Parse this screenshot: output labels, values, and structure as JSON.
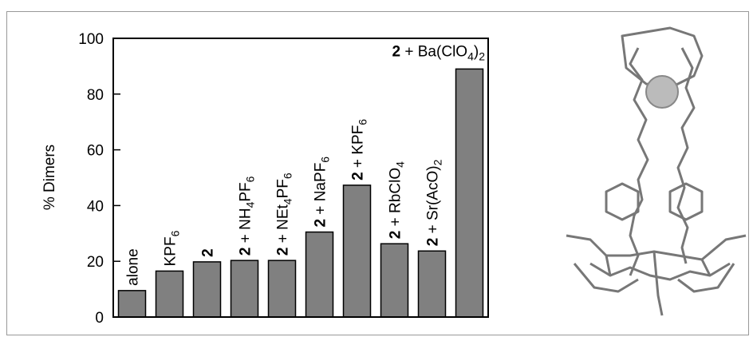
{
  "chart_data": {
    "type": "bar",
    "y_label": "% Dimers",
    "categories": [
      "alone",
      "KPF6",
      "2",
      "2 + NH4PF6",
      "2 + NEt4PF6",
      "2 + NaPF6",
      "2 + KPF6",
      "2 + RbClO4",
      "2 + Sr(AcO)2",
      "2 + Ba(ClO4)2"
    ],
    "values": [
      9.5,
      16.5,
      19.8,
      20.3,
      20.3,
      30.5,
      47.3,
      26.3,
      23.7,
      89
    ],
    "color": "#808080",
    "ylim": [
      0,
      100
    ],
    "yticks": [
      0,
      20,
      40,
      60,
      80,
      100
    ]
  }
}
